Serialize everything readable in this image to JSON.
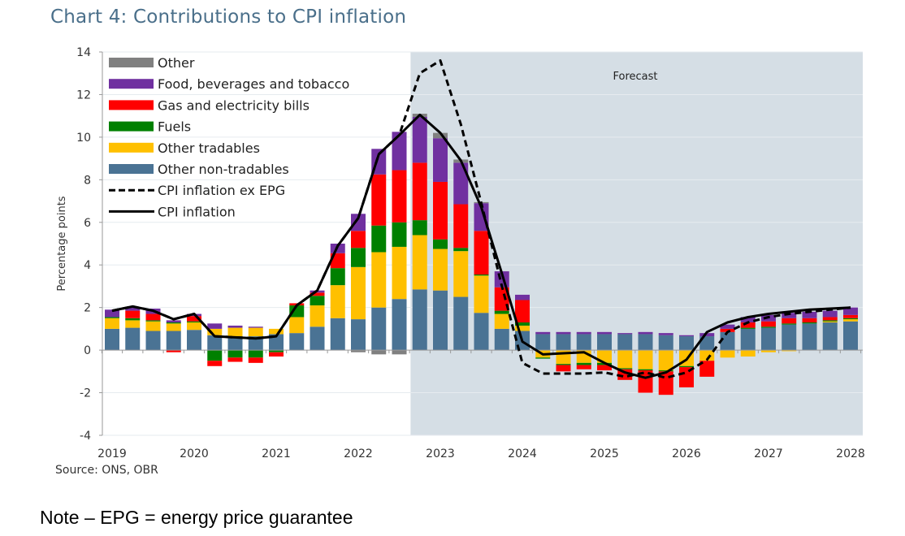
{
  "title": "Chart 4: Contributions to CPI inflation",
  "source": "Source: ONS, OBR",
  "note": "Note – EPG = energy price guarantee",
  "chart_data": {
    "type": "bar",
    "subtype": "stacked-bar-with-lines",
    "title": "Chart 4: Contributions to CPI inflation",
    "xlabel": "",
    "ylabel": "Percentage points",
    "ylim": [
      -4,
      14
    ],
    "yticks": [
      -4,
      -2,
      0,
      2,
      4,
      6,
      8,
      10,
      12,
      14
    ],
    "xtick_labels": [
      "2019",
      "2020",
      "2021",
      "2022",
      "2023",
      "2024",
      "2025",
      "2026",
      "2027",
      "2028"
    ],
    "grid": true,
    "legend_position": "top-left",
    "forecast": {
      "label": "Forecast",
      "start_index": 15,
      "color": "#d5dee5"
    },
    "categories": [
      "2019Q1",
      "2019Q2",
      "2019Q3",
      "2019Q4",
      "2020Q1",
      "2020Q2",
      "2020Q3",
      "2020Q4",
      "2021Q1",
      "2021Q2",
      "2021Q3",
      "2021Q4",
      "2022Q1",
      "2022Q2",
      "2022Q3",
      "2022Q4",
      "2023Q1",
      "2023Q2",
      "2023Q3",
      "2023Q4",
      "2024Q1",
      "2024Q2",
      "2024Q3",
      "2024Q4",
      "2025Q1",
      "2025Q2",
      "2025Q3",
      "2025Q4",
      "2026Q1",
      "2026Q2",
      "2026Q3",
      "2026Q4",
      "2027Q1",
      "2027Q2",
      "2027Q3",
      "2027Q4",
      "2028Q1"
    ],
    "series": [
      {
        "name": "Other non-tradables",
        "color": "#4a7394",
        "values": [
          1.0,
          1.05,
          0.9,
          0.9,
          0.95,
          0.7,
          0.65,
          0.65,
          0.75,
          0.8,
          1.1,
          1.5,
          1.45,
          2.0,
          2.4,
          2.85,
          2.8,
          2.5,
          1.75,
          1.0,
          0.9,
          0.75,
          0.75,
          0.75,
          0.75,
          0.75,
          0.75,
          0.7,
          0.65,
          0.65,
          0.85,
          1.0,
          1.05,
          1.2,
          1.25,
          1.3,
          1.35
        ]
      },
      {
        "name": "Other tradables",
        "color": "#ffc000",
        "values": [
          0.5,
          0.35,
          0.45,
          0.35,
          0.35,
          0.3,
          0.4,
          0.4,
          0.25,
          0.75,
          1.0,
          1.55,
          2.45,
          2.6,
          2.45,
          2.55,
          1.95,
          2.15,
          1.75,
          0.7,
          0.25,
          -0.35,
          -0.65,
          -0.6,
          -0.6,
          -0.85,
          -0.9,
          -0.95,
          -0.75,
          -0.5,
          -0.35,
          -0.3,
          -0.1,
          -0.05,
          0.0,
          0.05,
          0.1
        ]
      },
      {
        "name": "Fuels",
        "color": "#008000",
        "values": [
          0.05,
          0.1,
          0.05,
          0.05,
          0.05,
          -0.5,
          -0.35,
          -0.35,
          -0.1,
          0.55,
          0.45,
          0.8,
          0.9,
          1.25,
          1.15,
          0.7,
          0.45,
          0.15,
          0.05,
          0.15,
          0.15,
          -0.05,
          -0.05,
          -0.1,
          -0.1,
          -0.05,
          -0.05,
          -0.05,
          -0.05,
          0.0,
          0.0,
          0.05,
          0.05,
          0.05,
          0.05,
          0.05,
          0.05
        ]
      },
      {
        "name": "Gas and electricity bills",
        "color": "#ff0000",
        "values": [
          0.0,
          0.35,
          0.3,
          -0.1,
          0.25,
          -0.25,
          -0.2,
          -0.25,
          -0.2,
          0.1,
          0.15,
          0.7,
          0.8,
          2.4,
          2.45,
          2.7,
          2.7,
          2.05,
          2.05,
          1.1,
          1.05,
          0.0,
          -0.3,
          -0.2,
          -0.25,
          -0.5,
          -1.05,
          -1.1,
          -0.95,
          -0.75,
          0.15,
          0.25,
          0.25,
          0.25,
          0.2,
          0.15,
          0.15
        ]
      },
      {
        "name": "Food, beverages and tobacco",
        "color": "#7030a0",
        "values": [
          0.35,
          0.15,
          0.25,
          0.1,
          0.1,
          0.25,
          0.1,
          0.05,
          0.0,
          0.0,
          0.1,
          0.45,
          0.8,
          1.2,
          1.8,
          2.15,
          2.05,
          1.95,
          1.3,
          0.75,
          0.25,
          0.1,
          0.1,
          0.1,
          0.1,
          0.05,
          0.1,
          0.1,
          0.05,
          0.15,
          0.2,
          0.25,
          0.3,
          0.25,
          0.3,
          0.3,
          0.35
        ]
      },
      {
        "name": "Other",
        "color": "#808080",
        "values": [
          0,
          0,
          0,
          0,
          0,
          0,
          0,
          0,
          0,
          0,
          0,
          0,
          -0.1,
          -0.2,
          -0.2,
          0.15,
          0.25,
          0.15,
          0.05,
          0,
          0,
          0,
          0,
          0,
          0,
          0,
          0,
          0,
          0,
          0,
          0,
          0,
          0,
          0,
          0,
          0,
          0
        ]
      }
    ],
    "lines": [
      {
        "name": "CPI inflation ex EPG",
        "style": "dashed",
        "color": "#000000",
        "values": [
          1.85,
          2.05,
          1.85,
          1.45,
          1.7,
          0.65,
          0.6,
          0.55,
          0.65,
          2.1,
          2.8,
          4.9,
          6.2,
          9.2,
          10.1,
          13.0,
          13.6,
          10.6,
          6.9,
          3.0,
          -0.6,
          -1.1,
          -1.1,
          -1.1,
          -1.05,
          -1.25,
          -1.05,
          -1.3,
          -1.05,
          -0.45,
          0.85,
          1.3,
          1.55,
          1.7,
          1.8,
          1.9,
          2.0
        ]
      },
      {
        "name": "CPI inflation",
        "style": "solid",
        "color": "#000000",
        "values": [
          1.85,
          2.05,
          1.85,
          1.45,
          1.7,
          0.65,
          0.6,
          0.55,
          0.65,
          2.1,
          2.8,
          4.9,
          6.2,
          9.2,
          10.1,
          11.05,
          10.2,
          8.9,
          6.7,
          3.6,
          0.4,
          -0.2,
          -0.15,
          -0.1,
          -0.6,
          -1.05,
          -1.3,
          -1.05,
          -0.45,
          0.85,
          1.3,
          1.55,
          1.7,
          1.8,
          1.9,
          1.95,
          2.0
        ]
      }
    ],
    "legend": [
      {
        "label": "Other",
        "kind": "bar",
        "color": "#808080"
      },
      {
        "label": "Food, beverages and tobacco",
        "kind": "bar",
        "color": "#7030a0"
      },
      {
        "label": "Gas and electricity bills",
        "kind": "bar",
        "color": "#ff0000"
      },
      {
        "label": "Fuels",
        "kind": "bar",
        "color": "#008000"
      },
      {
        "label": "Other tradables",
        "kind": "bar",
        "color": "#ffc000"
      },
      {
        "label": "Other non-tradables",
        "kind": "bar",
        "color": "#4a7394"
      },
      {
        "label": "CPI inflation ex EPG",
        "kind": "dashed"
      },
      {
        "label": "CPI inflation",
        "kind": "solid"
      }
    ]
  }
}
